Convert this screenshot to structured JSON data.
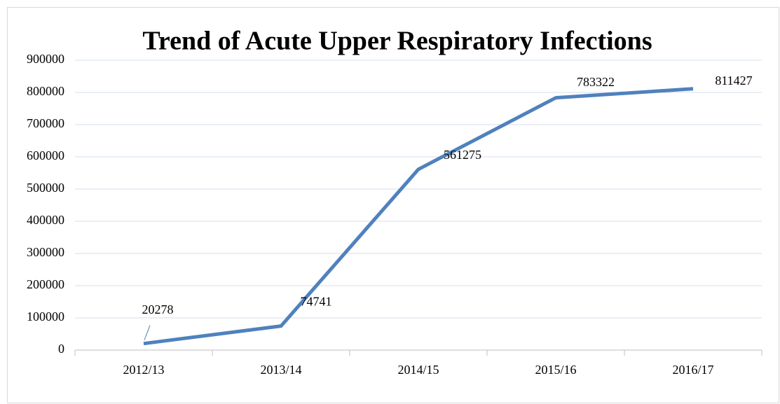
{
  "chart_data": {
    "type": "line",
    "title": "Trend of Acute Upper Respiratory Infections",
    "categories": [
      "2012/13",
      "2013/14",
      "2014/15",
      "2015/16",
      "2016/17"
    ],
    "series": [
      {
        "name": "Acute Upper Respiratory Infections",
        "color": "#4f81bd",
        "values": [
          20278,
          74741,
          561275,
          783322,
          811427
        ]
      }
    ],
    "ylim": [
      0,
      900000
    ],
    "yticks": [
      0,
      100000,
      200000,
      300000,
      400000,
      500000,
      600000,
      700000,
      800000,
      900000
    ],
    "grid": true
  }
}
